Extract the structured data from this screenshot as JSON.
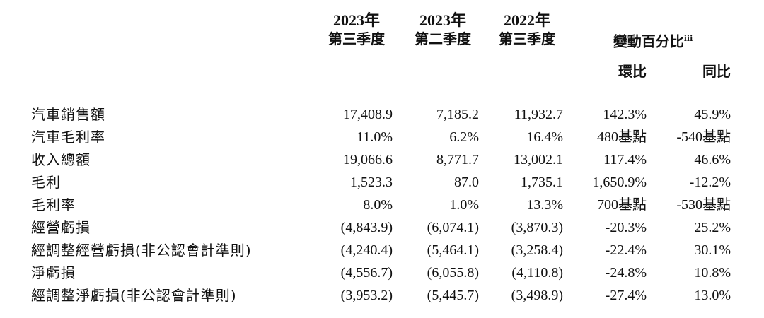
{
  "header": {
    "columns": [
      {
        "year": "2023年",
        "quarter": "第三季度"
      },
      {
        "year": "2023年",
        "quarter": "第二季度"
      },
      {
        "year": "2022年",
        "quarter": "第三季度"
      }
    ],
    "change_title": "變動百分比",
    "change_note": "iii",
    "change_sub": [
      "環比",
      "同比"
    ]
  },
  "rows": [
    {
      "label": "汽車銷售額",
      "values": [
        "17,408.9",
        "7,185.2",
        "11,932.7",
        "142.3%",
        "45.9%"
      ]
    },
    {
      "label": "汽車毛利率",
      "values": [
        "11.0%",
        "6.2%",
        "16.4%",
        "480基點",
        "-540基點"
      ]
    },
    {
      "label": "收入總額",
      "values": [
        "19,066.6",
        "8,771.7",
        "13,002.1",
        "117.4%",
        "46.6%"
      ]
    },
    {
      "label": "毛利",
      "values": [
        "1,523.3",
        "87.0",
        "1,735.1",
        "1,650.9%",
        "-12.2%"
      ]
    },
    {
      "label": "毛利率",
      "values": [
        "8.0%",
        "1.0%",
        "13.3%",
        "700基點",
        "-530基點"
      ]
    },
    {
      "label": "經營虧損",
      "values": [
        "(4,843.9)",
        "(6,074.1)",
        "(3,870.3)",
        "-20.3%",
        "25.2%"
      ]
    },
    {
      "label": "經調整經營虧損(非公認會計準則)",
      "values": [
        "(4,240.4)",
        "(5,464.1)",
        "(3,258.4)",
        "-22.4%",
        "30.1%"
      ]
    },
    {
      "label": "淨虧損",
      "values": [
        "(4,556.7)",
        "(6,055.8)",
        "(4,110.8)",
        "-24.8%",
        "10.8%"
      ]
    },
    {
      "label": "經調整淨虧損(非公認會計準則)",
      "values": [
        "(3,953.2)",
        "(5,445.7)",
        "(3,498.9)",
        "-27.4%",
        "13.0%"
      ]
    }
  ]
}
